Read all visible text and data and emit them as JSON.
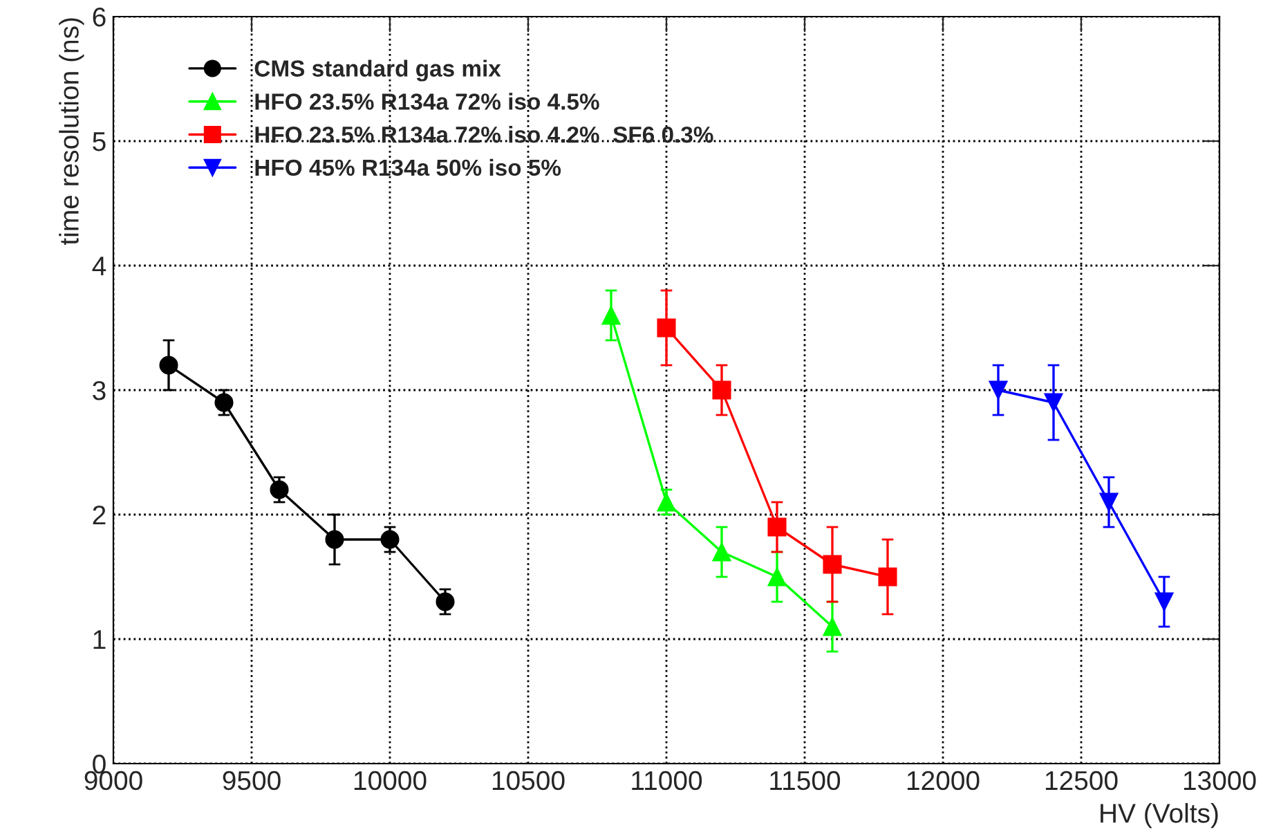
{
  "chart_data": {
    "type": "line",
    "xlabel": "HV (Volts)",
    "ylabel": "time resolution (ns)",
    "xlim": [
      9000,
      13000
    ],
    "xticks": [
      9000,
      9500,
      10000,
      10500,
      11000,
      11500,
      12000,
      12500,
      13000
    ],
    "ylim": [
      0,
      6
    ],
    "yticks": [
      0,
      1,
      2,
      3,
      4,
      5,
      6
    ],
    "grid": true,
    "legend": "top left",
    "series": [
      {
        "name": "CMS standard gas mix",
        "color": "#000000",
        "marker": "circle",
        "x": [
          9200,
          9400,
          9600,
          9800,
          10000,
          10200
        ],
        "values": [
          3.2,
          2.9,
          2.2,
          1.8,
          1.8,
          1.3
        ],
        "errors": [
          0.2,
          0.1,
          0.1,
          0.2,
          0.1,
          0.1
        ]
      },
      {
        "name": "HFO 23.5% R134a 72% iso 4.5%",
        "color": "#00ff00",
        "marker": "triangle",
        "x": [
          10800,
          11000,
          11200,
          11400,
          11600
        ],
        "values": [
          3.6,
          2.1,
          1.7,
          1.5,
          1.1
        ],
        "errors": [
          0.2,
          0.1,
          0.2,
          0.2,
          0.2
        ]
      },
      {
        "name": "HFO 23.5% R134a 72% iso 4.2%  SF6 0.3%",
        "color": "#ff0000",
        "marker": "square",
        "x": [
          11000,
          11200,
          11400,
          11600,
          11800
        ],
        "values": [
          3.5,
          3.0,
          1.9,
          1.6,
          1.5
        ],
        "errors": [
          0.3,
          0.2,
          0.2,
          0.3,
          0.3
        ]
      },
      {
        "name": "HFO 45% R134a 50% iso 5%",
        "color": "#0000ff",
        "marker": "triangle_down",
        "x": [
          12200,
          12400,
          12600,
          12800
        ],
        "values": [
          3.0,
          2.9,
          2.1,
          1.3
        ],
        "errors": [
          0.2,
          0.3,
          0.2,
          0.2
        ]
      }
    ]
  }
}
